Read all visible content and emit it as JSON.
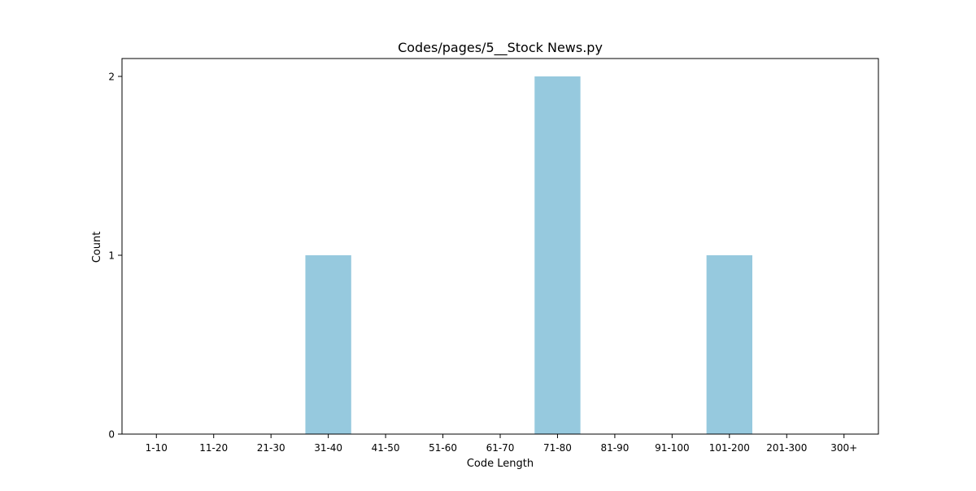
{
  "chart_data": {
    "type": "bar",
    "title": "Codes/pages/5__Stock News.py",
    "xlabel": "Code Length",
    "ylabel": "Count",
    "categories": [
      "1-10",
      "11-20",
      "21-30",
      "31-40",
      "41-50",
      "51-60",
      "61-70",
      "71-80",
      "81-90",
      "91-100",
      "101-200",
      "201-300",
      "300+"
    ],
    "values": [
      0,
      0,
      0,
      1,
      0,
      0,
      0,
      2,
      0,
      0,
      1,
      0,
      0
    ],
    "ylim": [
      0,
      2.1
    ],
    "yticks": [
      0,
      1,
      2
    ],
    "grid": false,
    "legend": "none",
    "bar_color": "#96c9de"
  }
}
